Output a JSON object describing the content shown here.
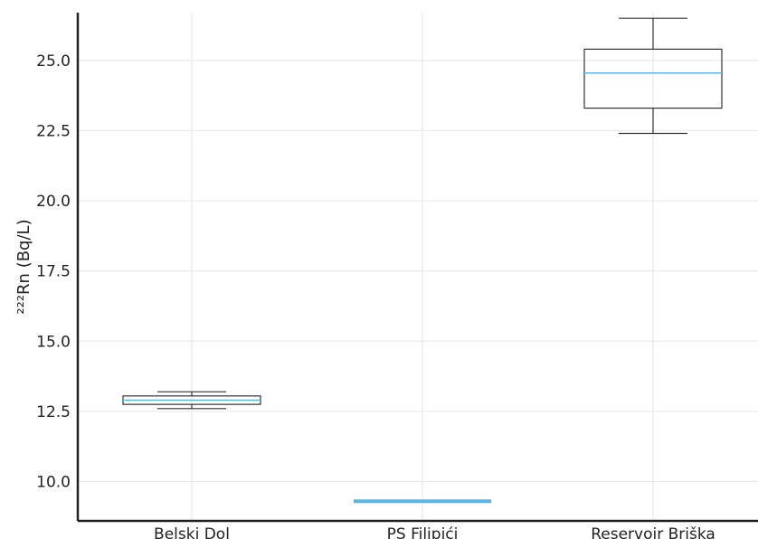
{
  "chart_data": {
    "type": "box",
    "ylabel": "²²²Rn (Bq/L)",
    "ylim": [
      8.6,
      26.7
    ],
    "yticks": [
      10.0,
      12.5,
      15.0,
      17.5,
      20.0,
      22.5,
      25.0
    ],
    "ytick_labels": [
      "10.0",
      "12.5",
      "15.0",
      "17.5",
      "20.0",
      "22.5",
      "25.0"
    ],
    "grid": true,
    "categories": [
      "Belski Dol",
      "PS Filipići",
      "Reservoir Briška"
    ],
    "boxes": [
      {
        "category": "Belski Dol",
        "whisker_low": 12.6,
        "q1": 12.75,
        "median": 12.9,
        "q3": 13.05,
        "whisker_high": 13.2
      },
      {
        "category": "PS Filipići",
        "whisker_low": 9.3,
        "q1": 9.3,
        "median": 9.3,
        "q3": 9.3,
        "whisker_high": 9.3
      },
      {
        "category": "Reservoir Briška",
        "whisker_low": 22.4,
        "q1": 23.3,
        "median": 24.55,
        "q3": 25.4,
        "whisker_high": 26.5
      }
    ],
    "colors": {
      "box_edge": "#333333",
      "median": "#5ab4e5",
      "grid": "#e6e6e6",
      "axis": "#222222"
    }
  }
}
